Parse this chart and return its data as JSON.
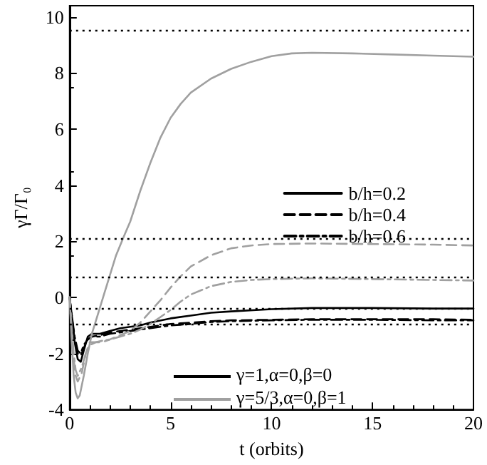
{
  "chart_data": {
    "type": "line",
    "xlabel": "t (orbits)",
    "ylabel": "γΓ/Γ₀",
    "xlim": [
      0,
      20
    ],
    "xticks": [
      0,
      5,
      10,
      15,
      20
    ],
    "ylim": [
      -4,
      10.4
    ],
    "yticks": [
      -4,
      -2,
      0,
      2,
      4,
      6,
      8,
      10
    ],
    "legend": "right",
    "grid": false,
    "annotations": [
      "γ=1,α=0,β=0",
      "γ=5/3,α=0,β=1"
    ],
    "ref_lines": [
      {
        "axis": "y",
        "value": 9.5,
        "line_style": "dotted",
        "color": "#000000"
      },
      {
        "axis": "y",
        "value": 2.1,
        "line_style": "dotted",
        "color": "#000000"
      },
      {
        "axis": "y",
        "value": 0.7,
        "line_style": "dotted",
        "color": "#000000"
      },
      {
        "axis": "y",
        "value": -0.4,
        "line_style": "dotted",
        "color": "#000000"
      },
      {
        "axis": "y",
        "value": -0.95,
        "line_style": "dotted",
        "color": "#000000"
      }
    ],
    "series": [
      {
        "name": "b/h=0.2",
        "color": "#000000",
        "line_style": "solid",
        "x": [
          0,
          0.1,
          0.25,
          0.4,
          0.55,
          0.7,
          0.9,
          1.1,
          1.5,
          2,
          2.5,
          3,
          3.5,
          4,
          5,
          6,
          7,
          8,
          10,
          12,
          15,
          18,
          20
        ],
        "values": [
          0,
          -0.6,
          -1.6,
          -2.2,
          -2.3,
          -1.9,
          -1.4,
          -1.3,
          -1.3,
          -1.2,
          -1.1,
          -1.05,
          -1.0,
          -0.9,
          -0.75,
          -0.65,
          -0.55,
          -0.5,
          -0.42,
          -0.38,
          -0.38,
          -0.4,
          -0.4
        ]
      },
      {
        "name": "b/h=0.4",
        "color": "#000000",
        "line_style": "dashed",
        "x": [
          0,
          0.1,
          0.25,
          0.4,
          0.55,
          0.7,
          0.9,
          1.1,
          1.5,
          2,
          3,
          4,
          5,
          6,
          7,
          8,
          10,
          12,
          15,
          18,
          20
        ],
        "values": [
          0,
          -0.7,
          -1.5,
          -2.0,
          -2.1,
          -1.8,
          -1.5,
          -1.4,
          -1.35,
          -1.25,
          -1.15,
          -1.05,
          -0.95,
          -0.9,
          -0.85,
          -0.82,
          -0.8,
          -0.78,
          -0.78,
          -0.78,
          -0.8
        ]
      },
      {
        "name": "b/h=0.6",
        "color": "#000000",
        "line_style": "dashdot",
        "x": [
          0,
          0.1,
          0.25,
          0.4,
          0.55,
          0.7,
          0.9,
          1.1,
          1.5,
          2,
          3,
          4,
          5,
          6,
          7,
          8,
          10,
          12,
          15,
          18,
          20
        ],
        "values": [
          0,
          -0.6,
          -1.4,
          -1.9,
          -2.0,
          -1.7,
          -1.5,
          -1.4,
          -1.4,
          -1.3,
          -1.2,
          -1.1,
          -1.0,
          -0.95,
          -0.88,
          -0.85,
          -0.82,
          -0.8,
          -0.8,
          -0.82,
          -0.82
        ]
      },
      {
        "color": "#a0a0a0",
        "line_style": "solid",
        "x": [
          0,
          0.1,
          0.2,
          0.3,
          0.4,
          0.5,
          0.7,
          0.9,
          1.1,
          1.4,
          1.7,
          2,
          2.3,
          2.7,
          3,
          3.5,
          4,
          4.5,
          5,
          5.5,
          6,
          7,
          8,
          9,
          10,
          11,
          12,
          14,
          16,
          18,
          20
        ],
        "values": [
          0,
          -1.5,
          -2.8,
          -3.4,
          -3.6,
          -3.5,
          -2.8,
          -2.0,
          -1.3,
          -0.6,
          0.1,
          0.8,
          1.5,
          2.2,
          2.7,
          3.8,
          4.8,
          5.7,
          6.4,
          6.9,
          7.3,
          7.8,
          8.15,
          8.4,
          8.6,
          8.7,
          8.72,
          8.7,
          8.66,
          8.62,
          8.58
        ]
      },
      {
        "color": "#a0a0a0",
        "line_style": "dashed",
        "x": [
          0,
          0.1,
          0.2,
          0.3,
          0.4,
          0.6,
          0.8,
          1,
          1.3,
          1.6,
          2,
          2.5,
          3,
          3.5,
          4,
          4.5,
          5,
          5.5,
          6,
          7,
          8,
          9,
          10,
          12,
          15,
          18,
          20
        ],
        "values": [
          0,
          -1.2,
          -2.2,
          -2.8,
          -3.0,
          -2.7,
          -2.0,
          -1.6,
          -1.6,
          -1.6,
          -1.5,
          -1.35,
          -1.2,
          -0.9,
          -0.5,
          -0.1,
          0.35,
          0.75,
          1.1,
          1.5,
          1.75,
          1.85,
          1.9,
          1.92,
          1.9,
          1.88,
          1.85
        ]
      },
      {
        "color": "#a0a0a0",
        "line_style": "dashdot",
        "x": [
          0,
          0.1,
          0.2,
          0.3,
          0.4,
          0.6,
          0.8,
          1,
          1.3,
          1.6,
          2,
          2.5,
          3,
          3.5,
          4,
          4.5,
          5,
          5.5,
          6,
          7,
          8,
          9,
          10,
          12,
          15,
          18,
          20
        ],
        "values": [
          0,
          -1.1,
          -2.0,
          -2.6,
          -2.8,
          -2.5,
          -2.0,
          -1.7,
          -1.6,
          -1.55,
          -1.5,
          -1.4,
          -1.3,
          -1.15,
          -0.95,
          -0.7,
          -0.45,
          -0.15,
          0.1,
          0.4,
          0.55,
          0.62,
          0.65,
          0.68,
          0.65,
          0.62,
          0.6
        ]
      }
    ]
  }
}
